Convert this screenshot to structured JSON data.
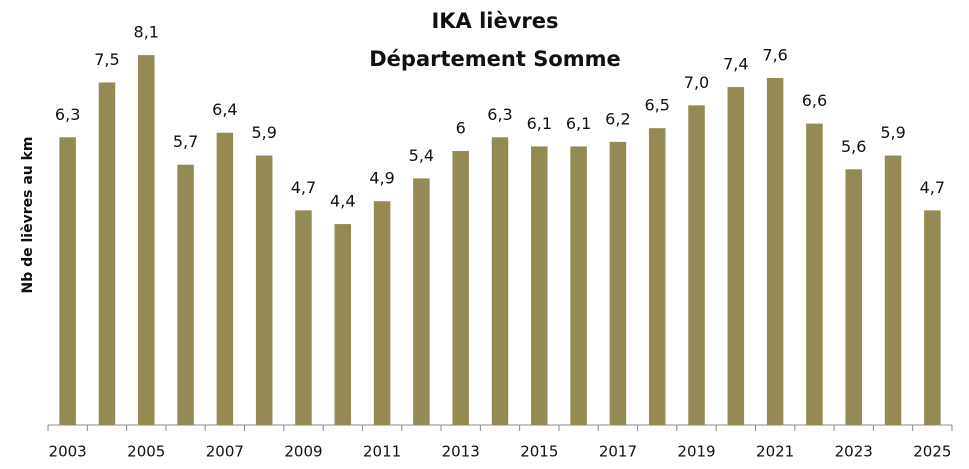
{
  "chart_data": {
    "type": "bar",
    "title": "IKA lièvres",
    "subtitle": "Département Somme",
    "y_label": "Nb de lièvres au km",
    "categories": [
      "2003",
      null,
      "2005",
      null,
      "2007",
      null,
      "2009",
      null,
      "2011",
      null,
      "2013",
      null,
      "2015",
      null,
      "2017",
      null,
      "2019",
      null,
      "2021",
      null,
      "2023",
      null,
      "2025"
    ],
    "values": [
      6.3,
      7.5,
      8.1,
      5.7,
      6.4,
      5.9,
      4.7,
      4.4,
      4.9,
      5.4,
      6,
      6.3,
      6.1,
      6.1,
      6.2,
      6.5,
      7.0,
      7.4,
      7.6,
      6.6,
      5.6,
      5.9,
      4.7
    ],
    "value_labels": [
      "6,3",
      "7,5",
      "8,1",
      "5,7",
      "6,4",
      "5,9",
      "4,7",
      "4,4",
      "4,9",
      "5,4",
      "6",
      "6,3",
      "6,1",
      "6,1",
      "6,2",
      "6,5",
      "7,0",
      "7,4",
      "7,6",
      "6,6",
      "5,6",
      "5,9",
      "4,7"
    ],
    "color": "#948a54",
    "ylim": [
      0,
      9
    ]
  }
}
